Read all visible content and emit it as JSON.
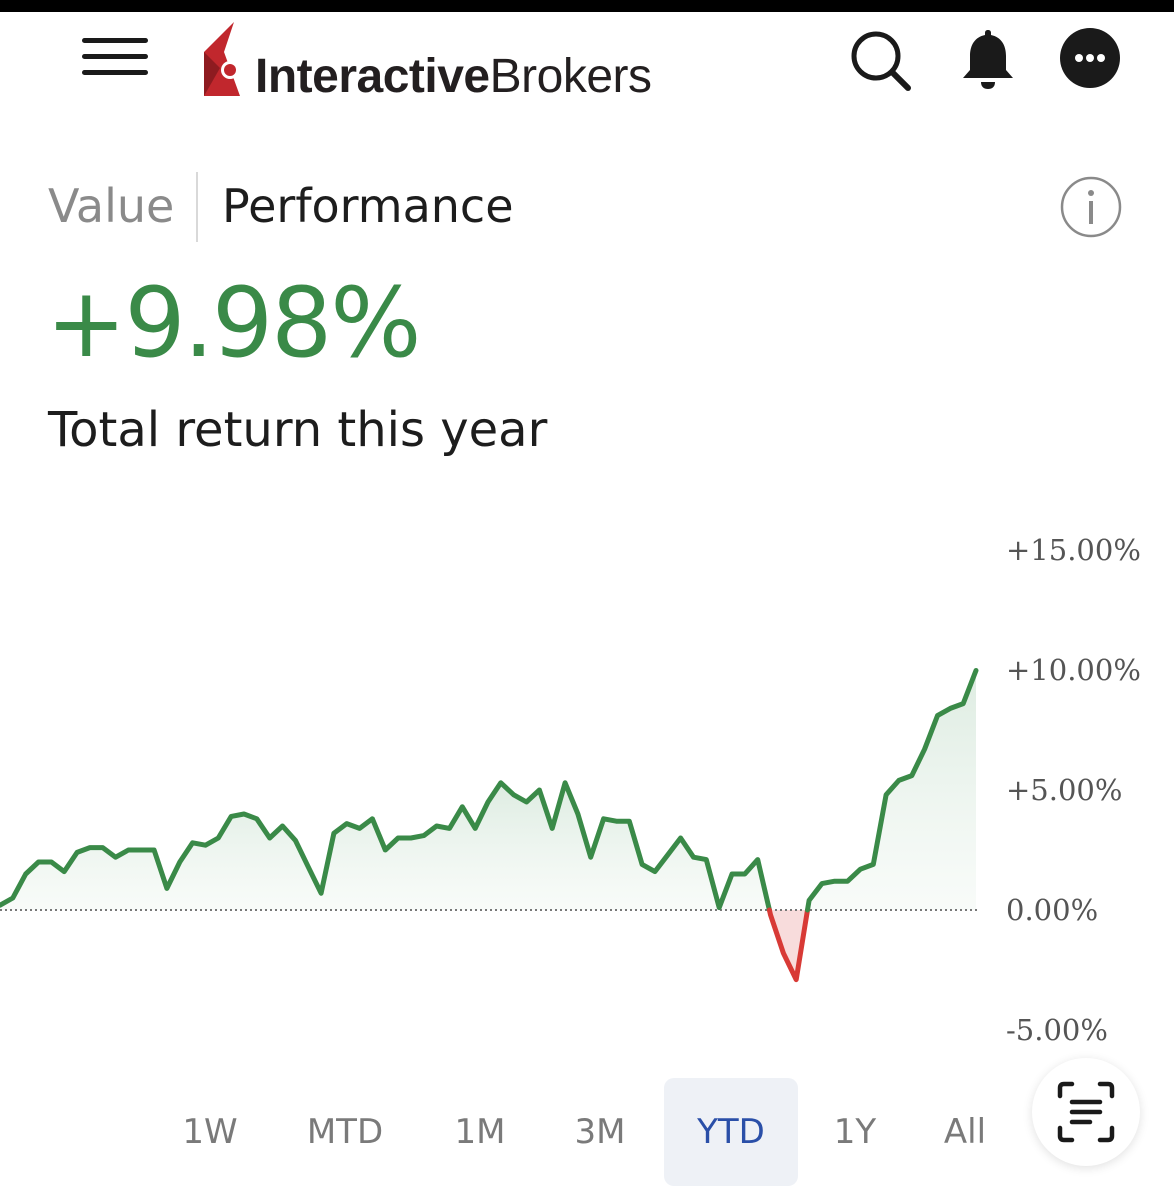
{
  "header": {
    "brand_bold": "Interactive",
    "brand_regular": "Brokers",
    "icons": [
      "menu-icon",
      "search-icon",
      "bell-icon",
      "more-icon"
    ]
  },
  "tabs": [
    {
      "label": "Value",
      "active": false
    },
    {
      "label": "Performance",
      "active": true
    }
  ],
  "summary": {
    "value": "+9.98%",
    "label": "Total return this year"
  },
  "colors": {
    "positive": "#3a8a48",
    "negative": "#d83a36",
    "positive_fill": "#e8f2ea",
    "negative_fill": "#f8dcdc",
    "active_range": "#2a4fa8"
  },
  "chart_data": {
    "type": "line",
    "ylim": [
      -5,
      15
    ],
    "y_ticks": [
      "+15.00%",
      "+10.00%",
      "+5.00%",
      "0.00%",
      "-5.00%"
    ],
    "baseline": 0,
    "grid": false,
    "values": [
      0.2,
      0.5,
      1.5,
      2.0,
      2.0,
      1.6,
      2.4,
      2.6,
      2.6,
      2.2,
      2.5,
      2.5,
      2.5,
      0.9,
      2.0,
      2.8,
      2.7,
      3.0,
      3.9,
      4.0,
      3.8,
      3.0,
      3.5,
      2.9,
      1.8,
      0.7,
      3.2,
      3.6,
      3.4,
      3.8,
      2.5,
      3.0,
      3.0,
      3.1,
      3.5,
      3.4,
      4.3,
      3.4,
      4.5,
      5.3,
      4.8,
      4.5,
      5.0,
      3.4,
      5.3,
      4.0,
      2.2,
      3.8,
      3.7,
      3.7,
      1.9,
      1.6,
      2.3,
      3.0,
      2.2,
      2.1,
      0.1,
      1.5,
      1.5,
      2.1,
      -0.2,
      -1.8,
      -2.9,
      0.4,
      1.1,
      1.2,
      1.2,
      1.7,
      1.9,
      4.8,
      5.4,
      5.6,
      6.7,
      8.1,
      8.4,
      8.6,
      9.98
    ]
  },
  "ranges": [
    {
      "label": "1W",
      "active": false
    },
    {
      "label": "MTD",
      "active": false
    },
    {
      "label": "1M",
      "active": false
    },
    {
      "label": "3M",
      "active": false
    },
    {
      "label": "YTD",
      "active": true
    },
    {
      "label": "1Y",
      "active": false
    },
    {
      "label": "All",
      "active": false
    }
  ]
}
